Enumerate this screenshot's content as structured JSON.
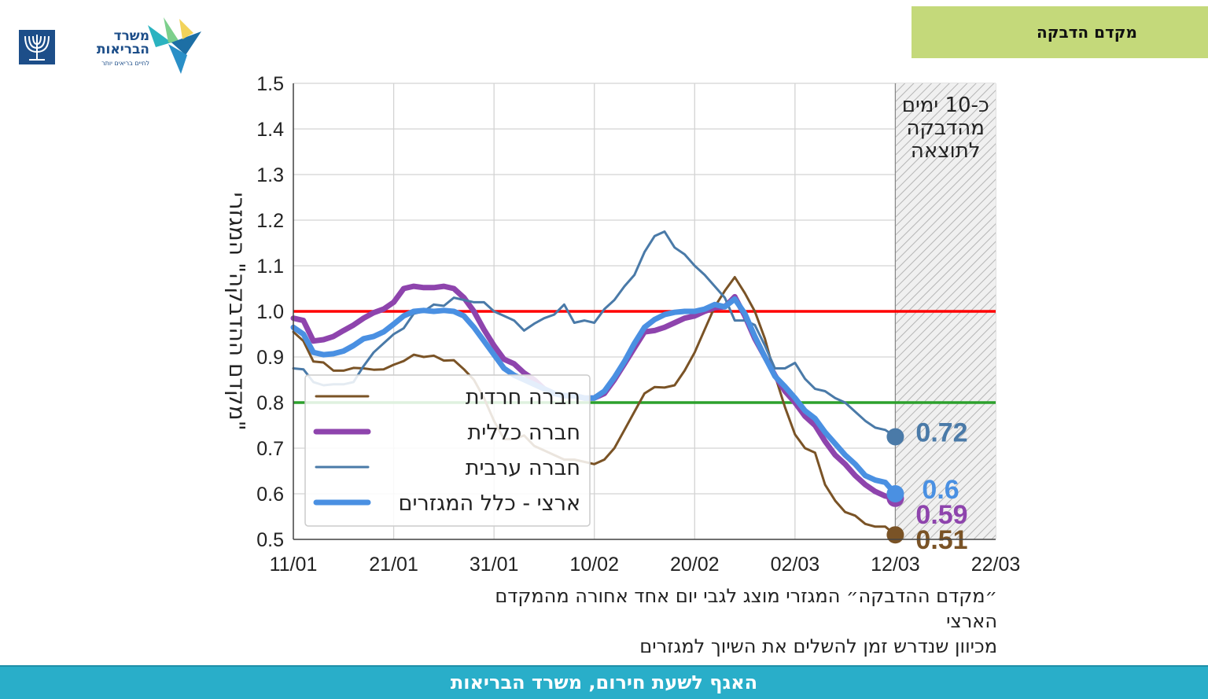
{
  "logo": {
    "name_line1": "משרד",
    "name_line2": "הבריאות",
    "slogan": "לחיים בריאים יותר",
    "brand_color": "#1d4e89"
  },
  "header": {
    "title": "מקדם הדבקה"
  },
  "chart_data": {
    "type": "line",
    "ylabel": "\"מקדם ההדבקה\" המגזרי",
    "ylim": [
      0.5,
      1.5
    ],
    "yticks": [
      "0.5",
      "0.6",
      "0.7",
      "0.8",
      "0.9",
      "1.0",
      "1.1",
      "1.2",
      "1.3",
      "1.4",
      "1.5"
    ],
    "xlim": [
      "2021-01-11",
      "2021-03-22"
    ],
    "xticks": [
      {
        "date": "2021-01-11",
        "label": "11/01"
      },
      {
        "date": "2021-01-21",
        "label": "21/01"
      },
      {
        "date": "2021-01-31",
        "label": "31/01"
      },
      {
        "date": "2021-02-10",
        "label": "10/02"
      },
      {
        "date": "2021-02-20",
        "label": "20/02"
      },
      {
        "date": "2021-03-02",
        "label": "02/03"
      },
      {
        "date": "2021-03-12",
        "label": "12/03"
      },
      {
        "date": "2021-03-22",
        "label": "22/03"
      }
    ],
    "grid": true,
    "legend_position": "lower-left",
    "reference_lines": [
      {
        "y": 1.0,
        "color": "#ff0000"
      },
      {
        "y": 0.8,
        "color": "#2ca02c"
      }
    ],
    "shaded_region": {
      "x_start": "2021-03-12",
      "x_end": "2021-03-22",
      "label": [
        "כ-10 ימים",
        "מהדבקה",
        "לתוצאה"
      ]
    },
    "series": [
      {
        "name": "חברה חרדית",
        "color": "#7a5326",
        "width": "thin",
        "end_label": "0.51",
        "end_value": 0.51,
        "points": [
          [
            "2021-01-11",
            0.955
          ],
          [
            "2021-01-12",
            0.935
          ],
          [
            "2021-01-13",
            0.89
          ],
          [
            "2021-01-14",
            0.888
          ],
          [
            "2021-01-15",
            0.87
          ],
          [
            "2021-01-16",
            0.87
          ],
          [
            "2021-01-17",
            0.876
          ],
          [
            "2021-01-18",
            0.875
          ],
          [
            "2021-01-19",
            0.872
          ],
          [
            "2021-01-20",
            0.873
          ],
          [
            "2021-01-21",
            0.883
          ],
          [
            "2021-01-22",
            0.891
          ],
          [
            "2021-01-23",
            0.905
          ],
          [
            "2021-01-24",
            0.9
          ],
          [
            "2021-01-25",
            0.903
          ],
          [
            "2021-01-26",
            0.892
          ],
          [
            "2021-01-27",
            0.893
          ],
          [
            "2021-01-28",
            0.873
          ],
          [
            "2021-01-29",
            0.85
          ],
          [
            "2021-01-30",
            0.81
          ],
          [
            "2021-01-31",
            0.76
          ],
          [
            "2021-02-01",
            0.72
          ],
          [
            "2021-02-02",
            0.72
          ],
          [
            "2021-02-03",
            0.728
          ],
          [
            "2021-02-04",
            0.705
          ],
          [
            "2021-02-05",
            0.695
          ],
          [
            "2021-02-06",
            0.685
          ],
          [
            "2021-02-07",
            0.675
          ],
          [
            "2021-02-08",
            0.675
          ],
          [
            "2021-02-09",
            0.67
          ],
          [
            "2021-02-10",
            0.665
          ],
          [
            "2021-02-11",
            0.675
          ],
          [
            "2021-02-12",
            0.7
          ],
          [
            "2021-02-13",
            0.74
          ],
          [
            "2021-02-14",
            0.78
          ],
          [
            "2021-02-15",
            0.82
          ],
          [
            "2021-02-16",
            0.834
          ],
          [
            "2021-02-17",
            0.833
          ],
          [
            "2021-02-18",
            0.838
          ],
          [
            "2021-02-19",
            0.87
          ],
          [
            "2021-02-20",
            0.91
          ],
          [
            "2021-02-21",
            0.96
          ],
          [
            "2021-02-22",
            1.01
          ],
          [
            "2021-02-23",
            1.045
          ],
          [
            "2021-02-24",
            1.075
          ],
          [
            "2021-02-25",
            1.04
          ],
          [
            "2021-02-26",
            1.0
          ],
          [
            "2021-02-27",
            0.94
          ],
          [
            "2021-02-28",
            0.86
          ],
          [
            "2021-03-01",
            0.79
          ],
          [
            "2021-03-02",
            0.73
          ],
          [
            "2021-03-03",
            0.7
          ],
          [
            "2021-03-04",
            0.69
          ],
          [
            "2021-03-05",
            0.62
          ],
          [
            "2021-03-06",
            0.585
          ],
          [
            "2021-03-07",
            0.56
          ],
          [
            "2021-03-08",
            0.552
          ],
          [
            "2021-03-09",
            0.534
          ],
          [
            "2021-03-10",
            0.528
          ],
          [
            "2021-03-11",
            0.528
          ],
          [
            "2021-03-12",
            0.51
          ]
        ]
      },
      {
        "name": "חברה כללית",
        "color": "#8e44ad",
        "width": "thick",
        "end_label": "0.59",
        "end_value": 0.59,
        "points": [
          [
            "2021-01-11",
            0.985
          ],
          [
            "2021-01-12",
            0.98
          ],
          [
            "2021-01-13",
            0.935
          ],
          [
            "2021-01-14",
            0.938
          ],
          [
            "2021-01-15",
            0.945
          ],
          [
            "2021-01-16",
            0.958
          ],
          [
            "2021-01-17",
            0.97
          ],
          [
            "2021-01-18",
            0.985
          ],
          [
            "2021-01-19",
            0.997
          ],
          [
            "2021-01-20",
            1.005
          ],
          [
            "2021-01-21",
            1.02
          ],
          [
            "2021-01-22",
            1.05
          ],
          [
            "2021-01-23",
            1.055
          ],
          [
            "2021-01-24",
            1.052
          ],
          [
            "2021-01-25",
            1.052
          ],
          [
            "2021-01-26",
            1.055
          ],
          [
            "2021-01-27",
            1.05
          ],
          [
            "2021-01-28",
            1.03
          ],
          [
            "2021-01-29",
            1.0
          ],
          [
            "2021-01-30",
            0.96
          ],
          [
            "2021-01-31",
            0.925
          ],
          [
            "2021-02-01",
            0.895
          ],
          [
            "2021-02-02",
            0.885
          ],
          [
            "2021-02-03",
            0.865
          ],
          [
            "2021-02-04",
            0.85
          ],
          [
            "2021-02-05",
            0.83
          ],
          [
            "2021-02-06",
            0.82
          ],
          [
            "2021-02-07",
            0.815
          ],
          [
            "2021-02-08",
            0.815
          ],
          [
            "2021-02-09",
            0.81
          ],
          [
            "2021-02-10",
            0.81
          ],
          [
            "2021-02-11",
            0.82
          ],
          [
            "2021-02-12",
            0.85
          ],
          [
            "2021-02-13",
            0.885
          ],
          [
            "2021-02-14",
            0.92
          ],
          [
            "2021-02-15",
            0.955
          ],
          [
            "2021-02-16",
            0.958
          ],
          [
            "2021-02-17",
            0.965
          ],
          [
            "2021-02-18",
            0.975
          ],
          [
            "2021-02-19",
            0.985
          ],
          [
            "2021-02-20",
            0.99
          ],
          [
            "2021-02-21",
            1.0
          ],
          [
            "2021-02-22",
            1.008
          ],
          [
            "2021-02-23",
            1.01
          ],
          [
            "2021-02-24",
            1.032
          ],
          [
            "2021-02-25",
            0.99
          ],
          [
            "2021-02-26",
            0.94
          ],
          [
            "2021-02-27",
            0.9
          ],
          [
            "2021-02-28",
            0.86
          ],
          [
            "2021-03-01",
            0.825
          ],
          [
            "2021-03-02",
            0.8
          ],
          [
            "2021-03-03",
            0.77
          ],
          [
            "2021-03-04",
            0.75
          ],
          [
            "2021-03-05",
            0.715
          ],
          [
            "2021-03-06",
            0.685
          ],
          [
            "2021-03-07",
            0.665
          ],
          [
            "2021-03-08",
            0.64
          ],
          [
            "2021-03-09",
            0.62
          ],
          [
            "2021-03-10",
            0.605
          ],
          [
            "2021-03-11",
            0.595
          ],
          [
            "2021-03-12",
            0.59
          ]
        ]
      },
      {
        "name": "חברה ערבית",
        "color": "#4a7aa8",
        "width": "thin",
        "end_label": "0.72",
        "end_value": 0.725,
        "points": [
          [
            "2021-01-11",
            0.875
          ],
          [
            "2021-01-12",
            0.873
          ],
          [
            "2021-01-13",
            0.845
          ],
          [
            "2021-01-14",
            0.838
          ],
          [
            "2021-01-15",
            0.84
          ],
          [
            "2021-01-16",
            0.84
          ],
          [
            "2021-01-17",
            0.845
          ],
          [
            "2021-01-18",
            0.88
          ],
          [
            "2021-01-19",
            0.91
          ],
          [
            "2021-01-20",
            0.93
          ],
          [
            "2021-01-21",
            0.95
          ],
          [
            "2021-01-22",
            0.963
          ],
          [
            "2021-01-23",
            0.995
          ],
          [
            "2021-01-24",
            1.0
          ],
          [
            "2021-01-25",
            1.015
          ],
          [
            "2021-01-26",
            1.012
          ],
          [
            "2021-01-27",
            1.03
          ],
          [
            "2021-01-28",
            1.025
          ],
          [
            "2021-01-29",
            1.02
          ],
          [
            "2021-01-30",
            1.02
          ],
          [
            "2021-01-31",
            1.0
          ],
          [
            "2021-02-01",
            0.99
          ],
          [
            "2021-02-02",
            0.98
          ],
          [
            "2021-02-03",
            0.958
          ],
          [
            "2021-02-04",
            0.973
          ],
          [
            "2021-02-05",
            0.985
          ],
          [
            "2021-02-06",
            0.993
          ],
          [
            "2021-02-07",
            1.015
          ],
          [
            "2021-02-08",
            0.975
          ],
          [
            "2021-02-09",
            0.98
          ],
          [
            "2021-02-10",
            0.975
          ],
          [
            "2021-02-11",
            1.005
          ],
          [
            "2021-02-12",
            1.025
          ],
          [
            "2021-02-13",
            1.055
          ],
          [
            "2021-02-14",
            1.08
          ],
          [
            "2021-02-15",
            1.13
          ],
          [
            "2021-02-16",
            1.165
          ],
          [
            "2021-02-17",
            1.175
          ],
          [
            "2021-02-18",
            1.14
          ],
          [
            "2021-02-19",
            1.125
          ],
          [
            "2021-02-20",
            1.1
          ],
          [
            "2021-02-21",
            1.08
          ],
          [
            "2021-02-22",
            1.055
          ],
          [
            "2021-02-23",
            1.03
          ],
          [
            "2021-02-24",
            0.98
          ],
          [
            "2021-02-25",
            0.98
          ],
          [
            "2021-02-26",
            0.97
          ],
          [
            "2021-02-27",
            0.925
          ],
          [
            "2021-02-28",
            0.875
          ],
          [
            "2021-03-01",
            0.875
          ],
          [
            "2021-03-02",
            0.887
          ],
          [
            "2021-03-03",
            0.852
          ],
          [
            "2021-03-04",
            0.83
          ],
          [
            "2021-03-05",
            0.825
          ],
          [
            "2021-03-06",
            0.81
          ],
          [
            "2021-03-07",
            0.8
          ],
          [
            "2021-03-08",
            0.78
          ],
          [
            "2021-03-09",
            0.76
          ],
          [
            "2021-03-10",
            0.745
          ],
          [
            "2021-03-11",
            0.74
          ],
          [
            "2021-03-12",
            0.725
          ]
        ]
      },
      {
        "name": "ארצי - כלל המגזרים",
        "color": "#4a90e2",
        "width": "thick",
        "end_label": "0.6",
        "end_value": 0.6,
        "points": [
          [
            "2021-01-11",
            0.965
          ],
          [
            "2021-01-12",
            0.95
          ],
          [
            "2021-01-13",
            0.91
          ],
          [
            "2021-01-14",
            0.905
          ],
          [
            "2021-01-15",
            0.907
          ],
          [
            "2021-01-16",
            0.913
          ],
          [
            "2021-01-17",
            0.925
          ],
          [
            "2021-01-18",
            0.94
          ],
          [
            "2021-01-19",
            0.945
          ],
          [
            "2021-01-20",
            0.955
          ],
          [
            "2021-01-21",
            0.972
          ],
          [
            "2021-01-22",
            0.99
          ],
          [
            "2021-01-23",
            1.0
          ],
          [
            "2021-01-24",
            1.002
          ],
          [
            "2021-01-25",
            1.0
          ],
          [
            "2021-01-26",
            1.002
          ],
          [
            "2021-01-27",
            1.0
          ],
          [
            "2021-01-28",
            0.99
          ],
          [
            "2021-01-29",
            0.965
          ],
          [
            "2021-01-30",
            0.935
          ],
          [
            "2021-01-31",
            0.905
          ],
          [
            "2021-02-01",
            0.875
          ],
          [
            "2021-02-02",
            0.86
          ],
          [
            "2021-02-03",
            0.85
          ],
          [
            "2021-02-04",
            0.84
          ],
          [
            "2021-02-05",
            0.83
          ],
          [
            "2021-02-06",
            0.82
          ],
          [
            "2021-02-07",
            0.815
          ],
          [
            "2021-02-08",
            0.815
          ],
          [
            "2021-02-09",
            0.81
          ],
          [
            "2021-02-10",
            0.81
          ],
          [
            "2021-02-11",
            0.825
          ],
          [
            "2021-02-12",
            0.855
          ],
          [
            "2021-02-13",
            0.89
          ],
          [
            "2021-02-14",
            0.93
          ],
          [
            "2021-02-15",
            0.965
          ],
          [
            "2021-02-16",
            0.982
          ],
          [
            "2021-02-17",
            0.993
          ],
          [
            "2021-02-18",
            0.998
          ],
          [
            "2021-02-19",
            1.0
          ],
          [
            "2021-02-20",
            1.0
          ],
          [
            "2021-02-21",
            1.005
          ],
          [
            "2021-02-22",
            1.015
          ],
          [
            "2021-02-23",
            1.01
          ],
          [
            "2021-02-24",
            1.027
          ],
          [
            "2021-02-25",
            0.995
          ],
          [
            "2021-02-26",
            0.945
          ],
          [
            "2021-02-27",
            0.9
          ],
          [
            "2021-02-28",
            0.858
          ],
          [
            "2021-03-01",
            0.835
          ],
          [
            "2021-03-02",
            0.81
          ],
          [
            "2021-03-03",
            0.782
          ],
          [
            "2021-03-04",
            0.765
          ],
          [
            "2021-03-05",
            0.735
          ],
          [
            "2021-03-06",
            0.71
          ],
          [
            "2021-03-07",
            0.685
          ],
          [
            "2021-03-08",
            0.665
          ],
          [
            "2021-03-09",
            0.64
          ],
          [
            "2021-03-10",
            0.63
          ],
          [
            "2021-03-11",
            0.625
          ],
          [
            "2021-03-12",
            0.6
          ]
        ]
      }
    ]
  },
  "caption": {
    "line1": "״מקדם ההדבקה״ המגזרי מוצג לגבי יום אחד אחורה מהמקדם הארצי",
    "line2": "מכיוון שנדרש זמן להשלים את השיוך למגזרים"
  },
  "footer": {
    "text": "האגף לשעת חירום, משרד הבריאות",
    "color": "#29aec9"
  }
}
